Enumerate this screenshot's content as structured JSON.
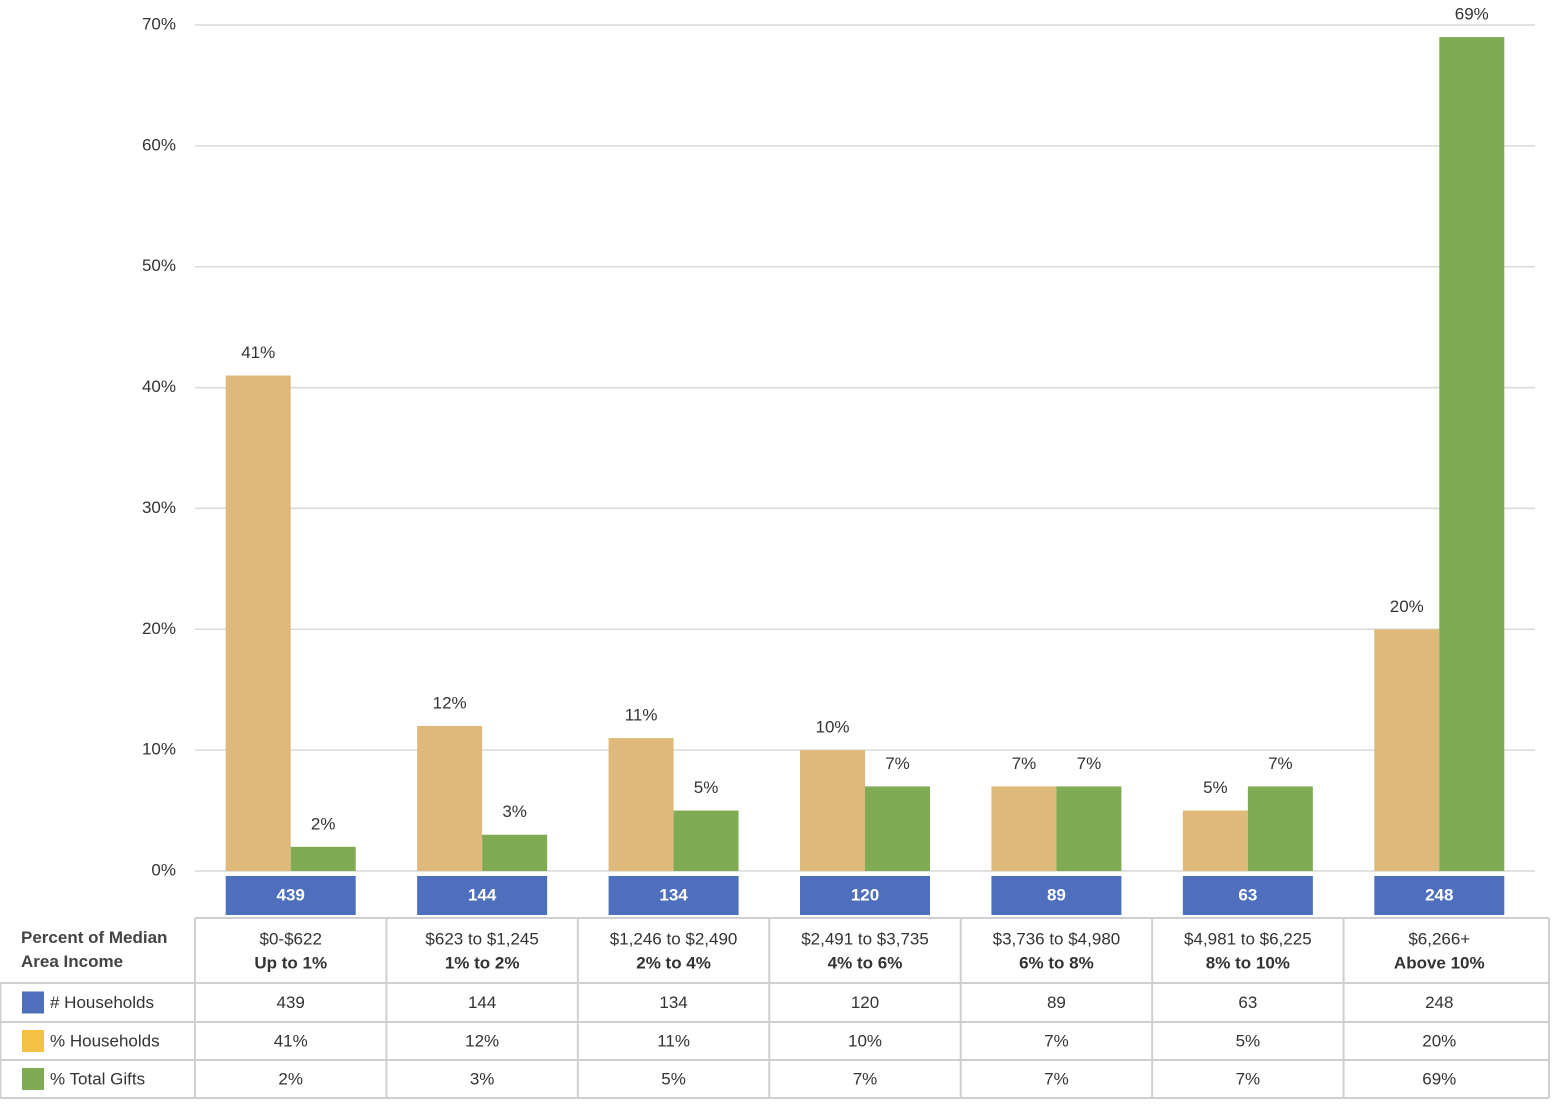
{
  "chart_data": {
    "type": "bar",
    "categories": [
      "$0-$622",
      "$623 to $1,245",
      "$1,246 to $2,490",
      "$2,491 to $3,735",
      "$3,736 to $4,980",
      "$4,981 to $6,225",
      "$6,266+"
    ],
    "category_sublabels": [
      "Up to 1%",
      "1% to 2%",
      "2% to 4%",
      "4% to 6%",
      "6% to 8%",
      "8% to 10%",
      "Above 10%"
    ],
    "table_header": "Percent of Median Area Income",
    "households": {
      "name": "# Households",
      "color": "#4e6fbe",
      "values": [
        439,
        144,
        134,
        120,
        89,
        63,
        248
      ]
    },
    "series": [
      {
        "name": "% Households",
        "color": "#deb97a",
        "key_color": "#f4c242",
        "values": [
          41,
          12,
          11,
          10,
          7,
          5,
          20
        ],
        "value_labels": [
          "41%",
          "12%",
          "11%",
          "10%",
          "7%",
          "5%",
          "20%"
        ]
      },
      {
        "name": "% Total Gifts",
        "color": "#80ab55",
        "key_color": "#80ab55",
        "values": [
          2,
          3,
          5,
          7,
          7,
          7,
          69
        ],
        "value_labels": [
          "2%",
          "3%",
          "5%",
          "7%",
          "7%",
          "7%",
          "69%"
        ]
      }
    ],
    "ylim": [
      0,
      70
    ],
    "yticks": [
      {
        "value": 0,
        "label": "0%"
      },
      {
        "value": 10,
        "label": "10%"
      },
      {
        "value": 20,
        "label": "20%"
      },
      {
        "value": 30,
        "label": "30%"
      },
      {
        "value": 40,
        "label": "40%"
      },
      {
        "value": 50,
        "label": "50%"
      },
      {
        "value": 60,
        "label": "60%"
      },
      {
        "value": 70,
        "label": "70%"
      }
    ],
    "grid": true
  }
}
